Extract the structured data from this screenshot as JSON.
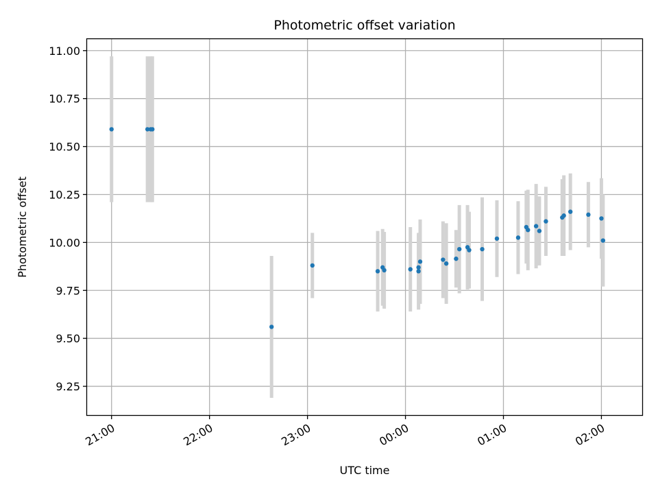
{
  "chart_data": {
    "type": "scatter",
    "title": "Photometric offset variation",
    "xlabel": "UTC time",
    "ylabel": "Photometric offset",
    "grid": true,
    "xlim": [
      "20:45",
      "02:25"
    ],
    "ylim": [
      9.1,
      11.06
    ],
    "x_ticks": [
      "21:00",
      "22:00",
      "23:00",
      "00:00",
      "01:00",
      "02:00"
    ],
    "y_ticks": [
      "9.25",
      "9.50",
      "9.75",
      "10.00",
      "10.25",
      "10.50",
      "10.75",
      "11.00"
    ],
    "colors": {
      "points": "#1f77b4",
      "errorbars": "#d3d3d3",
      "grid": "#b0b0b0"
    },
    "points": [
      {
        "x": "21:00",
        "y": 10.59,
        "err": 0.38
      },
      {
        "x": "21:22",
        "y": 10.59,
        "err": 0.38
      },
      {
        "x": "21:24",
        "y": 10.59,
        "err": 0.38
      },
      {
        "x": "21:25",
        "y": 10.59,
        "err": 0.38
      },
      {
        "x": "22:38",
        "y": 9.56,
        "err": 0.37
      },
      {
        "x": "23:03",
        "y": 9.88,
        "err": 0.17
      },
      {
        "x": "23:43",
        "y": 9.85,
        "err": 0.21
      },
      {
        "x": "23:46",
        "y": 9.87,
        "err": 0.2
      },
      {
        "x": "23:47",
        "y": 9.855,
        "err": 0.2
      },
      {
        "x": "00:03",
        "y": 9.86,
        "err": 0.22
      },
      {
        "x": "00:08",
        "y": 9.87,
        "err": 0.17
      },
      {
        "x": "00:08",
        "y": 9.85,
        "err": 0.2
      },
      {
        "x": "00:09",
        "y": 9.9,
        "err": 0.22
      },
      {
        "x": "00:23",
        "y": 9.91,
        "err": 0.2
      },
      {
        "x": "00:25",
        "y": 9.89,
        "err": 0.21
      },
      {
        "x": "00:31",
        "y": 9.915,
        "err": 0.15
      },
      {
        "x": "00:33",
        "y": 9.965,
        "err": 0.23
      },
      {
        "x": "00:38",
        "y": 9.975,
        "err": 0.22
      },
      {
        "x": "00:39",
        "y": 9.96,
        "err": 0.2
      },
      {
        "x": "00:47",
        "y": 9.965,
        "err": 0.27
      },
      {
        "x": "00:56",
        "y": 10.02,
        "err": 0.2
      },
      {
        "x": "01:09",
        "y": 10.025,
        "err": 0.19
      },
      {
        "x": "01:14",
        "y": 10.08,
        "err": 0.19
      },
      {
        "x": "01:15",
        "y": 10.065,
        "err": 0.21
      },
      {
        "x": "01:20",
        "y": 10.085,
        "err": 0.22
      },
      {
        "x": "01:22",
        "y": 10.06,
        "err": 0.18
      },
      {
        "x": "01:26",
        "y": 10.11,
        "err": 0.18
      },
      {
        "x": "01:36",
        "y": 10.13,
        "err": 0.2
      },
      {
        "x": "01:37",
        "y": 10.14,
        "err": 0.21
      },
      {
        "x": "01:41",
        "y": 10.16,
        "err": 0.2
      },
      {
        "x": "01:52",
        "y": 10.145,
        "err": 0.17
      },
      {
        "x": "02:00",
        "y": 10.125,
        "err": 0.21
      },
      {
        "x": "02:01",
        "y": 10.01,
        "err": 0.24
      }
    ]
  }
}
